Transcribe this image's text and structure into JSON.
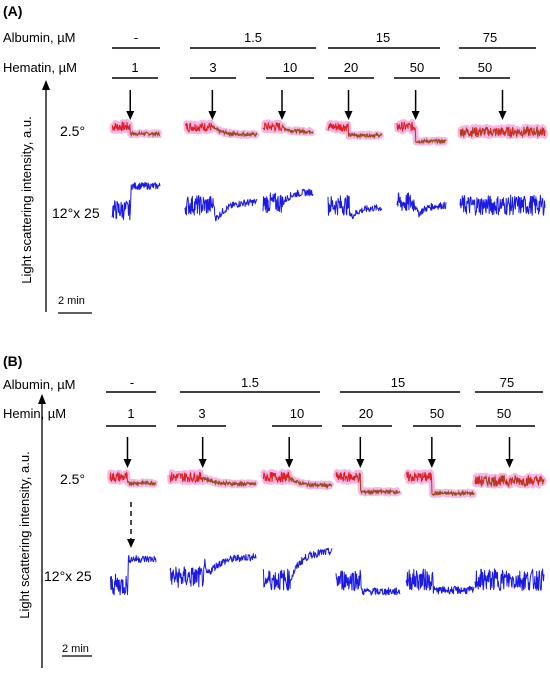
{
  "chart_data": {
    "type": "line",
    "colors": {
      "angle_2_5": "#e02020",
      "angle_12": "#1a1ae0",
      "pink_halo": "#f3b6e6",
      "brown": "#9a4d1a",
      "arrow": "#000000"
    },
    "panels": [
      {
        "panel_label": "(A)",
        "heme_label": "Hematin, µM",
        "albumin_label": "Albumin, µM",
        "albumin_groups": [
          "-",
          "1.5",
          "15",
          "75"
        ],
        "heme_conc": [
          "1",
          "3",
          "10",
          "20",
          "50",
          "50"
        ],
        "row_labels": [
          "2.5°",
          "12°x 25"
        ],
        "ylabel": "Light scattering intensity, a.u.",
        "scale_bar": "2 min",
        "traces_2_5": [
          {
            "before": 0.62,
            "after": 0.15,
            "shape": "step",
            "arrow": true
          },
          {
            "before": 0.62,
            "after": 0.1,
            "shape": "decay",
            "arrow": true
          },
          {
            "before": 0.62,
            "after": 0.3,
            "shape": "decay",
            "arrow": true
          },
          {
            "before": 0.62,
            "after": 0.05,
            "shape": "step",
            "arrow": true
          },
          {
            "before": 0.62,
            "after": -0.35,
            "shape": "step",
            "arrow": true
          },
          {
            "before": 0.3,
            "after": 0.3,
            "shape": "flat",
            "arrow": true
          }
        ],
        "traces_12": [
          {
            "before": 0.0,
            "after": 1.0,
            "shape": "step",
            "dip": 0.0
          },
          {
            "before": 0.2,
            "after": 0.35,
            "shape": "dip",
            "dip": 0.95
          },
          {
            "before": 0.3,
            "after": 0.75,
            "shape": "rise",
            "dip": 0.0
          },
          {
            "before": 0.2,
            "after": 0.1,
            "shape": "dip",
            "dip": 0.5
          },
          {
            "before": 0.3,
            "after": 0.2,
            "shape": "dip",
            "dip": 0.5
          },
          {
            "before": 0.2,
            "after": 0.2,
            "shape": "flat",
            "dip": 0.0
          }
        ]
      },
      {
        "panel_label": "(B)",
        "heme_label": "Hemin, µM",
        "albumin_label": "Albumin, µM",
        "albumin_groups": [
          "-",
          "1.5",
          "15",
          "75"
        ],
        "heme_conc": [
          "1",
          "3",
          "10",
          "20",
          "50",
          "50"
        ],
        "row_labels": [
          "2.5°",
          "12°x 25"
        ],
        "ylabel": "Light scattering intensity, a.u.",
        "scale_bar": "2 min",
        "traces_2_5": [
          {
            "before": 0.62,
            "after": 0.25,
            "shape": "step",
            "arrow": true
          },
          {
            "before": 0.62,
            "after": 0.18,
            "shape": "decay",
            "arrow": true
          },
          {
            "before": 0.62,
            "after": 0.1,
            "shape": "decay",
            "arrow": true
          },
          {
            "before": 0.62,
            "after": -0.3,
            "shape": "step",
            "arrow": true
          },
          {
            "before": 0.62,
            "after": -0.4,
            "shape": "step",
            "arrow": true
          },
          {
            "before": 0.4,
            "after": 0.4,
            "shape": "flat",
            "arrow": true
          }
        ],
        "traces_12": [
          {
            "before": 0.0,
            "after": 1.0,
            "shape": "step",
            "dip": 0.0
          },
          {
            "before": 0.3,
            "after": 1.1,
            "shape": "dip",
            "dip": 0.9
          },
          {
            "before": 0.2,
            "after": 1.3,
            "shape": "rise",
            "dip": 0.0
          },
          {
            "before": 0.2,
            "after": -0.25,
            "shape": "step",
            "dip": 0.0
          },
          {
            "before": 0.2,
            "after": -0.2,
            "shape": "step",
            "dip": 0.0
          },
          {
            "before": 0.2,
            "after": 0.2,
            "shape": "flat",
            "dip": 0.0
          }
        ]
      }
    ]
  }
}
